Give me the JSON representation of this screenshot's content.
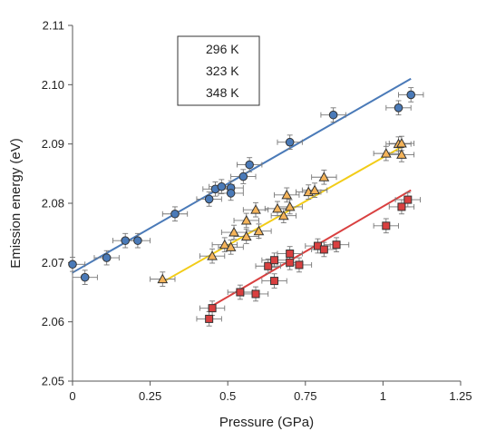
{
  "chart_data": {
    "type": "scatter",
    "xlabel": "Pressure (GPa)",
    "ylabel": "Emission energy (eV)",
    "xlim": [
      0,
      1.25
    ],
    "ylim": [
      2.05,
      2.11
    ],
    "x_ticks": [
      "0",
      "0.25",
      "0.5",
      "0.75",
      "1",
      "1.25"
    ],
    "y_ticks": [
      "2.05",
      "2.06",
      "2.07",
      "2.08",
      "2.09",
      "2.10",
      "2.11"
    ],
    "grid": false,
    "legend_position": "top-left",
    "error_bars": {
      "x": 0.04,
      "y": 0.0012
    },
    "series": [
      {
        "name": "296 K",
        "marker": "circle",
        "color": "#4a7ab8",
        "line_color": "#4a7ab8",
        "fit": {
          "x": [
            0.0,
            1.09
          ],
          "y": [
            2.0683,
            2.101
          ]
        },
        "points": [
          {
            "x": 0.0,
            "y": 2.0697
          },
          {
            "x": 0.04,
            "y": 2.0675
          },
          {
            "x": 0.11,
            "y": 2.0708
          },
          {
            "x": 0.17,
            "y": 2.0737
          },
          {
            "x": 0.21,
            "y": 2.0737
          },
          {
            "x": 0.33,
            "y": 2.0782
          },
          {
            "x": 0.44,
            "y": 2.0807
          },
          {
            "x": 0.46,
            "y": 2.0824
          },
          {
            "x": 0.48,
            "y": 2.0828
          },
          {
            "x": 0.51,
            "y": 2.0826
          },
          {
            "x": 0.51,
            "y": 2.0817
          },
          {
            "x": 0.55,
            "y": 2.0845
          },
          {
            "x": 0.57,
            "y": 2.0865
          },
          {
            "x": 0.7,
            "y": 2.0903
          },
          {
            "x": 0.84,
            "y": 2.0949
          },
          {
            "x": 1.05,
            "y": 2.0961
          },
          {
            "x": 1.09,
            "y": 2.0983
          }
        ]
      },
      {
        "name": "323 K",
        "marker": "triangle",
        "color": "#f5b45a",
        "line_color": "#f2cc17",
        "fit": {
          "x": [
            0.3,
            1.06
          ],
          "y": [
            2.067,
            2.0895
          ]
        },
        "points": [
          {
            "x": 0.29,
            "y": 2.0672
          },
          {
            "x": 0.45,
            "y": 2.0711
          },
          {
            "x": 0.49,
            "y": 2.073
          },
          {
            "x": 0.51,
            "y": 2.0726
          },
          {
            "x": 0.52,
            "y": 2.0751
          },
          {
            "x": 0.56,
            "y": 2.0771
          },
          {
            "x": 0.56,
            "y": 2.0744
          },
          {
            "x": 0.59,
            "y": 2.0789
          },
          {
            "x": 0.6,
            "y": 2.0753
          },
          {
            "x": 0.66,
            "y": 2.0791
          },
          {
            "x": 0.68,
            "y": 2.0779
          },
          {
            "x": 0.69,
            "y": 2.0814
          },
          {
            "x": 0.7,
            "y": 2.0794
          },
          {
            "x": 0.76,
            "y": 2.0819
          },
          {
            "x": 0.78,
            "y": 2.0822
          },
          {
            "x": 0.81,
            "y": 2.0844
          },
          {
            "x": 1.01,
            "y": 2.0884
          },
          {
            "x": 1.05,
            "y": 2.09
          },
          {
            "x": 1.06,
            "y": 2.0901
          },
          {
            "x": 1.06,
            "y": 2.0882
          }
        ]
      },
      {
        "name": "348 K",
        "marker": "square",
        "color": "#d94040",
        "line_color": "#d94040",
        "fit": {
          "x": [
            0.45,
            1.09
          ],
          "y": [
            2.0627,
            2.0822
          ]
        },
        "points": [
          {
            "x": 0.44,
            "y": 2.0605
          },
          {
            "x": 0.45,
            "y": 2.0623
          },
          {
            "x": 0.54,
            "y": 2.065
          },
          {
            "x": 0.59,
            "y": 2.0647
          },
          {
            "x": 0.63,
            "y": 2.0694
          },
          {
            "x": 0.65,
            "y": 2.0704
          },
          {
            "x": 0.65,
            "y": 2.0669
          },
          {
            "x": 0.7,
            "y": 2.07
          },
          {
            "x": 0.7,
            "y": 2.0715
          },
          {
            "x": 0.73,
            "y": 2.0696
          },
          {
            "x": 0.79,
            "y": 2.0728
          },
          {
            "x": 0.81,
            "y": 2.0722
          },
          {
            "x": 0.85,
            "y": 2.073
          },
          {
            "x": 1.01,
            "y": 2.0762
          },
          {
            "x": 1.06,
            "y": 2.0794
          },
          {
            "x": 1.08,
            "y": 2.0806
          }
        ]
      }
    ]
  }
}
